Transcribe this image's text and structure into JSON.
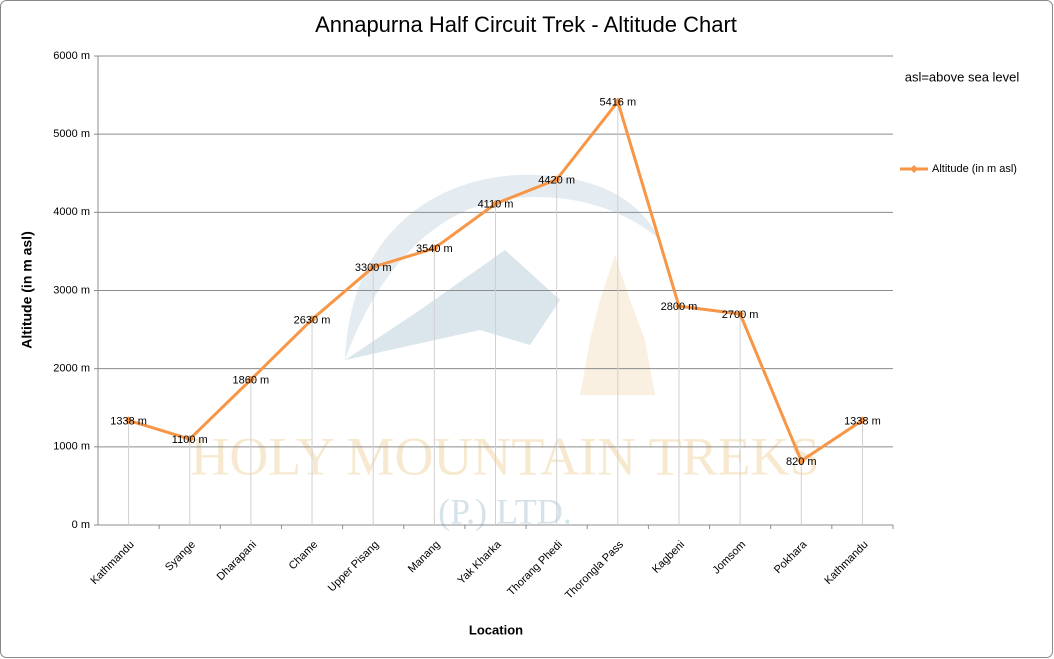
{
  "chart_data": {
    "type": "line",
    "title": "Annapurna Half Circuit Trek - Altitude Chart",
    "annotation": "asl=above sea level",
    "watermark": [
      "HOLY MOUNTAIN TREKS",
      "(P.) LTD."
    ],
    "x_label": "Location",
    "y_label": "Altitude (in m asl)",
    "categories": [
      "Kathmandu",
      "Syange",
      "Dharapani",
      "Chame",
      "Upper Pisang",
      "Manang",
      "Yak Kharka",
      "Thorang Phedi",
      "Thorongla Pass",
      "Kagbeni",
      "Jomsom",
      "Pokhara",
      "Kathmandu"
    ],
    "series": [
      {
        "name": "Altitude (in  m asl)",
        "color": "#f79646",
        "values": [
          1338,
          1100,
          1860,
          2630,
          3300,
          3540,
          4110,
          4420,
          5416,
          2800,
          2700,
          820,
          1338
        ],
        "value_labels": [
          "1338 m",
          "1100 m",
          "1860 m",
          "2630 m",
          "3300 m",
          "3540 m",
          "4110 m",
          "4420 m",
          "5416 m",
          "2800 m",
          "2700 m",
          "820 m",
          "1338 m"
        ]
      }
    ],
    "ylim": [
      0,
      6000
    ],
    "yticks": [
      {
        "value": 0,
        "label": "0 m"
      },
      {
        "value": 1000,
        "label": "1000 m"
      },
      {
        "value": 2000,
        "label": "2000 m"
      },
      {
        "value": 3000,
        "label": "3000 m"
      },
      {
        "value": 4000,
        "label": "4000 m"
      },
      {
        "value": 5000,
        "label": "5000 m"
      },
      {
        "value": 6000,
        "label": "6000 m"
      }
    ],
    "grid": true,
    "drop_lines": true,
    "legend_position": "right"
  }
}
